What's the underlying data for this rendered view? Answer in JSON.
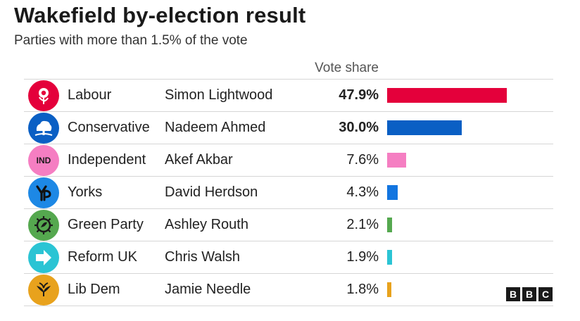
{
  "chart_data": {
    "type": "bar",
    "orientation": "horizontal",
    "title": "Wakefield by-election result",
    "subtitle": "Parties with more than 1.5% of the vote",
    "value_header": "Vote share",
    "unit": "%",
    "xlim": [
      0,
      47.9
    ],
    "categories": [
      "Labour",
      "Conservative",
      "Independent",
      "Yorks",
      "Green Party",
      "Reform UK",
      "Lib Dem"
    ],
    "candidates": [
      "Simon Lightwood",
      "Nadeem Ahmed",
      "Akef Akbar",
      "David Herdson",
      "Ashley Routh",
      "Chris Walsh",
      "Jamie Needle"
    ],
    "values": [
      47.9,
      30.0,
      7.6,
      4.3,
      2.1,
      1.9,
      1.8
    ],
    "value_labels": [
      "47.9%",
      "30.0%",
      "7.6%",
      "4.3%",
      "2.1%",
      "1.9%",
      "1.8%"
    ],
    "colors": [
      "#e4003b",
      "#0a5fc4",
      "#f57ec2",
      "#1275e0",
      "#55a84f",
      "#2bc4d4",
      "#e8a21d"
    ],
    "logo_colors": [
      "#e4003b",
      "#0a5fc4",
      "#f57ec2",
      "#1d88e5",
      "#55a84f",
      "#2bc4d4",
      "#e8a21d"
    ],
    "logo_icons": [
      "rose-icon",
      "tree-icon",
      "ind-badge-icon",
      "yp-icon",
      "green-party-icon",
      "arrow-right-icon",
      "bird-icon"
    ],
    "logo_text": [
      "",
      "",
      "IND",
      "",
      "",
      "",
      ""
    ],
    "grid": false,
    "legend": "none"
  },
  "footer": {
    "logo": [
      "B",
      "B",
      "C"
    ]
  }
}
